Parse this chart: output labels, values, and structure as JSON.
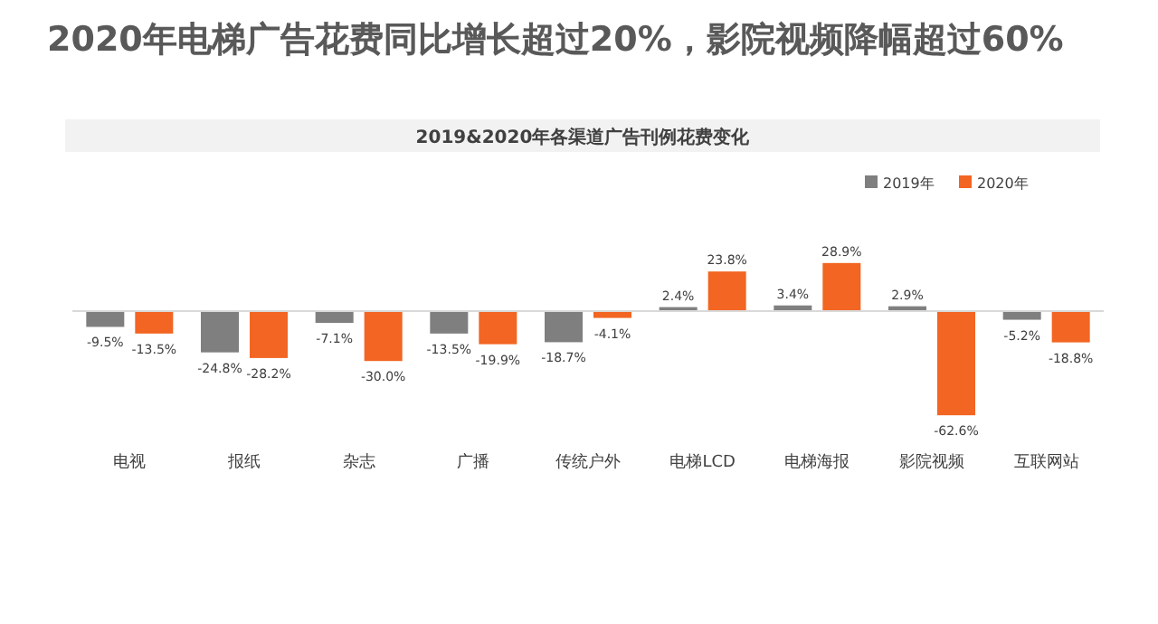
{
  "chart_data": {
    "type": "bar",
    "title": "2020年电梯广告花费同比增长超过20%，影院视频降幅超过60%",
    "subtitle": "2019&2020年各渠道广告刊例花费变化",
    "categories": [
      "电视",
      "报纸",
      "杂志",
      "广播",
      "传统户外",
      "电梯LCD",
      "电梯海报",
      "影院视频",
      "互联网站"
    ],
    "series": [
      {
        "name": "2019年",
        "color": "#7f7f7f",
        "values": [
          -9.5,
          -24.8,
          -7.1,
          -13.5,
          -18.7,
          2.4,
          3.4,
          2.9,
          -5.2
        ],
        "value_labels": [
          "-9.5%",
          "-24.8%",
          "-7.1%",
          "-13.5%",
          "-18.7%",
          "2.4%",
          "3.4%",
          "2.9%",
          "-5.2%"
        ]
      },
      {
        "name": "2020年",
        "color": "#f26522",
        "values": [
          -13.5,
          -28.2,
          -30.0,
          -19.9,
          -4.1,
          23.8,
          28.9,
          -62.6,
          -18.8
        ],
        "value_labels": [
          "-13.5%",
          "-28.2%",
          "-30.0%",
          "-19.9%",
          "-4.1%",
          "23.8%",
          "28.9%",
          "-62.6%",
          "-18.8%"
        ]
      }
    ],
    "legend": "top right"
  }
}
